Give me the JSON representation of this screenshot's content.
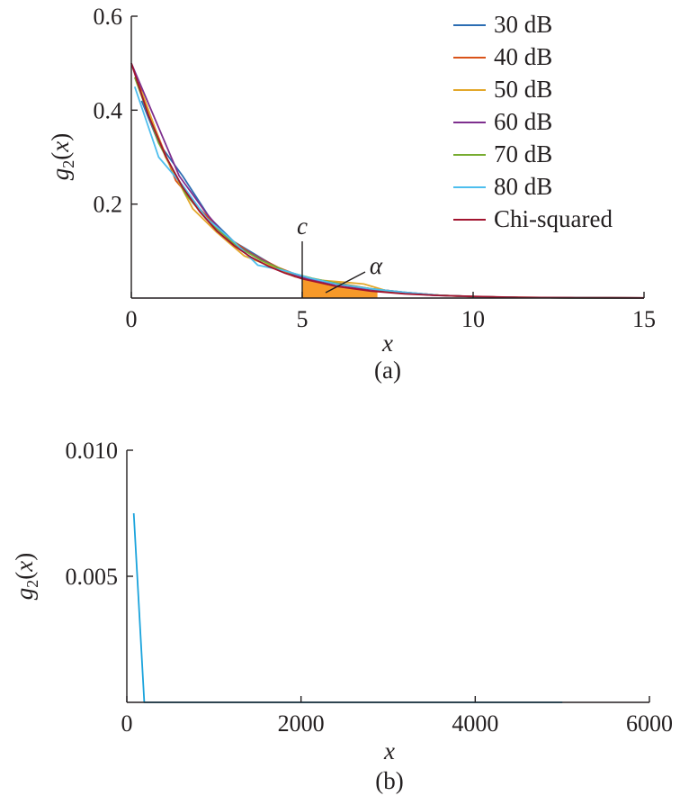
{
  "chart_data": [
    {
      "type": "line",
      "caption": "(a)",
      "xlabel": "x",
      "ylabel": "g2(x)",
      "xlim": [
        0,
        15
      ],
      "ylim": [
        0,
        0.6
      ],
      "xticks": [
        0,
        5,
        10,
        15
      ],
      "yticks": [
        0.2,
        0.4,
        0.6
      ],
      "xtick_labels": [
        "0",
        "5",
        "10",
        "15"
      ],
      "ytick_labels": [
        "0.2",
        "0.4",
        "0.6"
      ],
      "grid": false,
      "legend_position": "top-right",
      "series": [
        {
          "name": "30 dB",
          "color": "#2c6db3",
          "x": [
            0.3,
            0.8,
            1.5,
            2.3,
            3.0,
            3.8,
            4.5,
            5.3,
            6.0,
            7.0,
            8.0,
            9.0,
            10.0,
            11.5,
            13.0,
            15.0
          ],
          "y": [
            0.42,
            0.33,
            0.26,
            0.17,
            0.12,
            0.085,
            0.055,
            0.04,
            0.03,
            0.02,
            0.012,
            0.006,
            0.003,
            0.001,
            0.0005,
            0.0002
          ]
        },
        {
          "name": "40 dB",
          "color": "#d95319",
          "x": [
            0.2,
            0.7,
            1.3,
            2.0,
            2.8,
            3.5,
            4.3,
            5.0,
            6.0,
            7.0,
            8.0,
            9.0,
            10.0,
            11.5,
            13.0,
            15.0
          ],
          "y": [
            0.46,
            0.36,
            0.25,
            0.19,
            0.13,
            0.095,
            0.065,
            0.045,
            0.032,
            0.02,
            0.012,
            0.006,
            0.003,
            0.001,
            0.0005,
            0.0002
          ]
        },
        {
          "name": "50 dB",
          "color": "#e3a82b",
          "x": [
            0.3,
            1.0,
            1.8,
            2.5,
            3.3,
            4.0,
            4.8,
            5.5,
            6.2,
            6.8,
            7.5,
            8.5,
            9.5,
            11.0,
            13.0,
            15.0
          ],
          "y": [
            0.44,
            0.3,
            0.19,
            0.14,
            0.09,
            0.07,
            0.045,
            0.038,
            0.034,
            0.03,
            0.015,
            0.008,
            0.004,
            0.0015,
            0.0005,
            0.0002
          ]
        },
        {
          "name": "60 dB",
          "color": "#7e2f8e",
          "x": [
            0.0,
            0.7,
            1.4,
            2.2,
            2.9,
            3.6,
            4.4,
            5.1,
            5.9,
            6.8,
            7.8,
            8.8,
            10.0,
            11.5,
            13.0,
            15.0
          ],
          "y": [
            0.5,
            0.38,
            0.26,
            0.18,
            0.12,
            0.09,
            0.06,
            0.042,
            0.03,
            0.02,
            0.012,
            0.006,
            0.003,
            0.001,
            0.0005,
            0.0002
          ]
        },
        {
          "name": "70 dB",
          "color": "#77ac30",
          "x": [
            0.1,
            0.8,
            1.6,
            2.3,
            3.1,
            3.8,
            4.6,
            5.3,
            6.1,
            7.0,
            8.0,
            9.0,
            10.0,
            11.5,
            13.0,
            15.0
          ],
          "y": [
            0.47,
            0.33,
            0.22,
            0.16,
            0.11,
            0.08,
            0.055,
            0.042,
            0.03,
            0.02,
            0.011,
            0.006,
            0.003,
            0.001,
            0.0005,
            0.0002
          ]
        },
        {
          "name": "80 dB",
          "color": "#4dbeee",
          "x": [
            0.1,
            0.8,
            1.5,
            2.2,
            3.0,
            3.7,
            4.5,
            5.2,
            6.0,
            7.0,
            8.0,
            9.0,
            10.0,
            11.5,
            13.0,
            15.0
          ],
          "y": [
            0.45,
            0.3,
            0.24,
            0.17,
            0.12,
            0.07,
            0.058,
            0.043,
            0.03,
            0.02,
            0.012,
            0.006,
            0.003,
            0.001,
            0.0005,
            0.0002
          ]
        },
        {
          "name": "Chi-squared",
          "color": "#a2142f",
          "x": [
            0.0,
            0.5,
            1.0,
            1.5,
            2.0,
            2.5,
            3.0,
            3.5,
            4.0,
            4.5,
            5.0,
            6.0,
            7.0,
            8.0,
            9.0,
            10.0,
            11.0,
            12.0,
            13.0,
            14.0,
            15.0
          ],
          "y": [
            0.5,
            0.389,
            0.303,
            0.236,
            0.184,
            0.143,
            0.112,
            0.087,
            0.068,
            0.053,
            0.041,
            0.025,
            0.015,
            0.009,
            0.0056,
            0.0034,
            0.002,
            0.0012,
            0.0008,
            0.0005,
            0.0003
          ]
        }
      ],
      "annotations": [
        {
          "text": "c",
          "x": 5,
          "note": "vertical marker"
        },
        {
          "text": "α",
          "region_from_x": 5,
          "fill": "#f7931e",
          "note": "shaded tail area"
        }
      ]
    },
    {
      "type": "line",
      "caption": "(b)",
      "xlabel": "x",
      "ylabel": "g2(x)",
      "xlim": [
        0,
        6000
      ],
      "ylim": [
        0,
        0.01
      ],
      "xticks": [
        0,
        2000,
        4000,
        6000
      ],
      "yticks": [
        0.005,
        0.01
      ],
      "xtick_labels": [
        "0",
        "2000",
        "4000",
        "6000"
      ],
      "ytick_labels": [
        "0.005",
        "0.010"
      ],
      "grid": false,
      "series": [
        {
          "color": "#1aa3dc",
          "x": [
            80,
            200,
            5000
          ],
          "y": [
            0.0075,
            0.0,
            0.0
          ]
        }
      ]
    }
  ]
}
